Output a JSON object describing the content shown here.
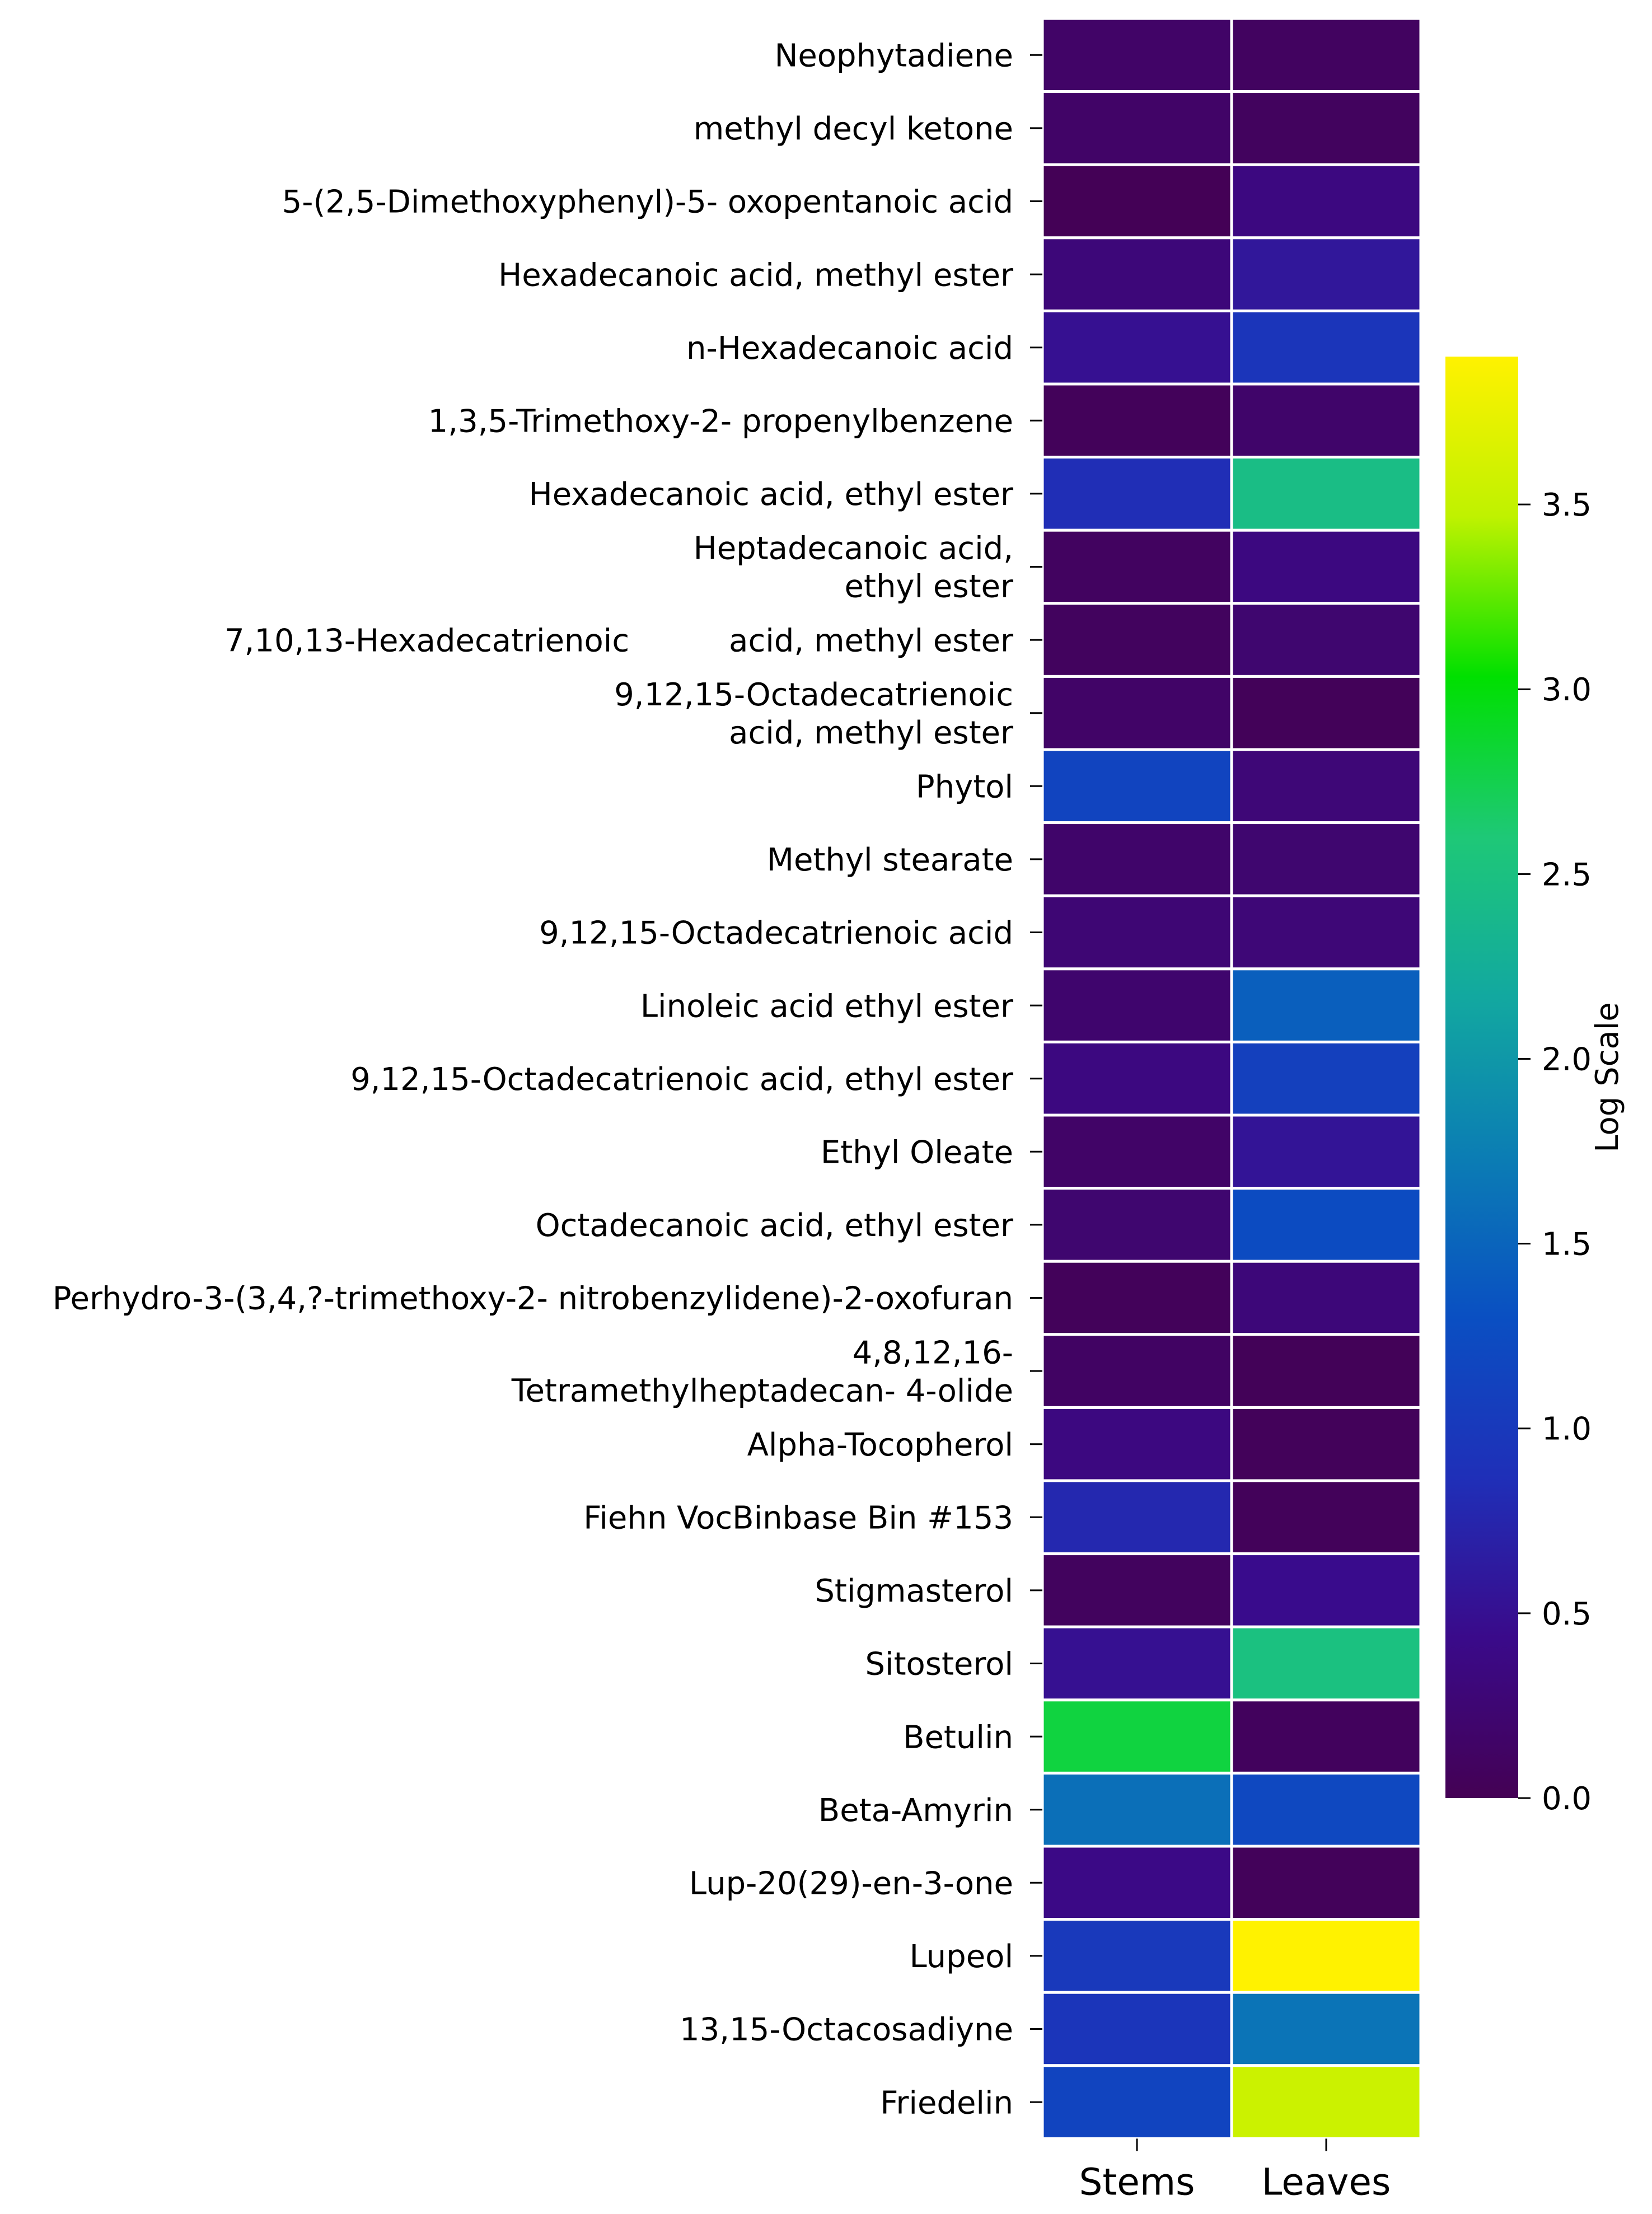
{
  "chart_data": {
    "type": "heatmap",
    "columns": [
      "Stems",
      "Leaves"
    ],
    "rows": [
      [
        "Neophytadiene"
      ],
      [
        "methyl decyl ketone"
      ],
      [
        "5-(2,5-Dimethoxyphenyl)-5- oxopentanoic acid"
      ],
      [
        "Hexadecanoic acid, methyl ester"
      ],
      [
        "n-Hexadecanoic acid"
      ],
      [
        "1,3,5-Trimethoxy-2- propenylbenzene"
      ],
      [
        "Hexadecanoic acid, ethyl ester"
      ],
      [
        "Heptadecanoic acid,",
        "ethyl ester"
      ],
      [
        "7,10,13-Hexadecatrienoic          acid, methyl ester"
      ],
      [
        "9,12,15-Octadecatrienoic",
        "acid, methyl ester"
      ],
      [
        "Phytol"
      ],
      [
        "Methyl stearate"
      ],
      [
        "9,12,15-Octadecatrienoic acid"
      ],
      [
        "Linoleic acid ethyl ester"
      ],
      [
        "9,12,15-Octadecatrienoic acid, ethyl ester"
      ],
      [
        "Ethyl Oleate"
      ],
      [
        "Octadecanoic acid, ethyl ester"
      ],
      [
        "Perhydro-3-(3,4,?-trimethoxy-2- nitrobenzylidene)-2-oxofuran"
      ],
      [
        "4,8,12,16-",
        "Tetramethylheptadecan- 4-olide"
      ],
      [
        "Alpha-Tocopherol"
      ],
      [
        "Fiehn VocBinbase Bin #153"
      ],
      [
        "Stigmasterol"
      ],
      [
        "Sitosterol"
      ],
      [
        "Betulin"
      ],
      [
        "Beta-Amyrin"
      ],
      [
        "Lup-20(29)-en-3-one"
      ],
      [
        "Lupeol"
      ],
      [
        "13,15-Octacosadiyne"
      ],
      [
        "Friedelin"
      ]
    ],
    "values": [
      [
        0.15,
        0.1
      ],
      [
        0.15,
        0.08
      ],
      [
        0.02,
        0.35
      ],
      [
        0.3,
        0.58
      ],
      [
        0.5,
        0.95
      ],
      [
        0.05,
        0.18
      ],
      [
        0.85,
        2.45
      ],
      [
        0.1,
        0.35
      ],
      [
        0.08,
        0.22
      ],
      [
        0.15,
        0.04
      ],
      [
        1.15,
        0.28
      ],
      [
        0.18,
        0.22
      ],
      [
        0.26,
        0.28
      ],
      [
        0.2,
        1.45
      ],
      [
        0.35,
        1.1
      ],
      [
        0.15,
        0.55
      ],
      [
        0.22,
        1.25
      ],
      [
        0.05,
        0.3
      ],
      [
        0.12,
        0.03
      ],
      [
        0.35,
        0.05
      ],
      [
        0.78,
        0.05
      ],
      [
        0.08,
        0.45
      ],
      [
        0.5,
        2.5
      ],
      [
        2.8,
        0.07
      ],
      [
        1.6,
        1.2
      ],
      [
        0.4,
        0.05
      ],
      [
        1.0,
        3.9
      ],
      [
        0.95,
        1.65
      ],
      [
        1.15,
        3.55
      ]
    ],
    "colorbar": {
      "label": "Log Scale",
      "min": 0.0,
      "max": 3.9,
      "ticks": [
        0.0,
        0.5,
        1.0,
        1.5,
        2.0,
        2.5,
        3.0,
        3.5
      ],
      "tick_labels": [
        "0.0",
        "0.5",
        "1.0",
        "1.5",
        "2.0",
        "2.5",
        "3.0",
        "3.5"
      ],
      "stops": [
        "#440154",
        "#3a0a8a",
        "#1f2fb8",
        "#0a4fc2",
        "#0b7db4",
        "#12a8a0",
        "#1ec877",
        "#00e000",
        "#bff200",
        "#fff200"
      ]
    }
  }
}
